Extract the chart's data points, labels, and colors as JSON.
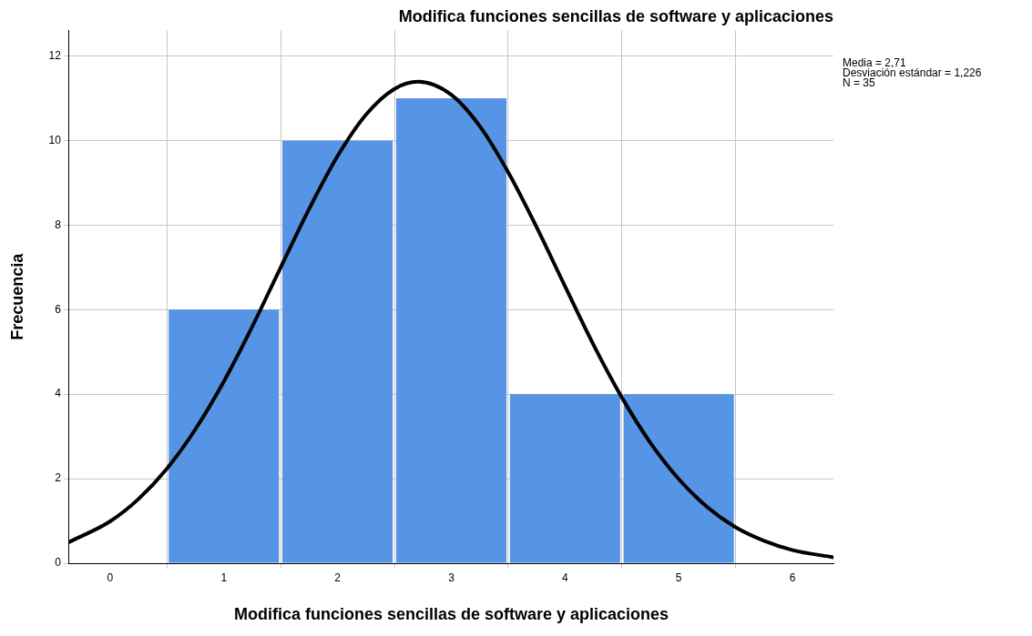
{
  "chart_data": {
    "type": "histogram",
    "title": "Modifica funciones sencillas de software y aplicaciones",
    "xlabel": "Modifica funciones sencillas de software y aplicaciones",
    "ylabel": "Frecuencia",
    "bins": [
      0.5,
      1.5,
      2.5,
      3.5,
      4.5,
      5.5
    ],
    "values": [
      6,
      10,
      11,
      4,
      4
    ],
    "color": "#5694e5",
    "series": [
      {
        "type": "line",
        "color": "#000000",
        "x": [
          -0.36,
          0,
          0.25,
          0.5,
          0.75,
          1,
          1.25,
          1.5,
          1.75,
          2,
          2.25,
          2.5,
          2.71,
          3,
          3.25,
          3.5,
          3.75,
          4,
          4.25,
          4.5,
          4.75,
          5,
          5.25,
          5.5,
          5.75,
          6,
          6.36
        ],
        "values": [
          0.5,
          0.99,
          1.52,
          2.24,
          3.17,
          4.3,
          5.6,
          7.0,
          8.38,
          9.63,
          10.61,
          11.22,
          11.39,
          11.08,
          10.34,
          9.25,
          7.95,
          6.55,
          5.17,
          3.92,
          2.85,
          1.99,
          1.33,
          0.85,
          0.53,
          0.31,
          0.14
        ]
      }
    ],
    "xlim": [
      -0.36,
      6.36
    ],
    "xticks": [
      0,
      1,
      2,
      3,
      4,
      5,
      6
    ],
    "ylim": [
      0,
      12.6
    ],
    "yticks": [
      0,
      2,
      4,
      6,
      8,
      10,
      12
    ],
    "grid": true,
    "legend": false,
    "marker": "none",
    "line_style": "solid",
    "annotations": [
      "Media = 2,71",
      "Desviación estándar = 1,226",
      "N = 35"
    ]
  }
}
